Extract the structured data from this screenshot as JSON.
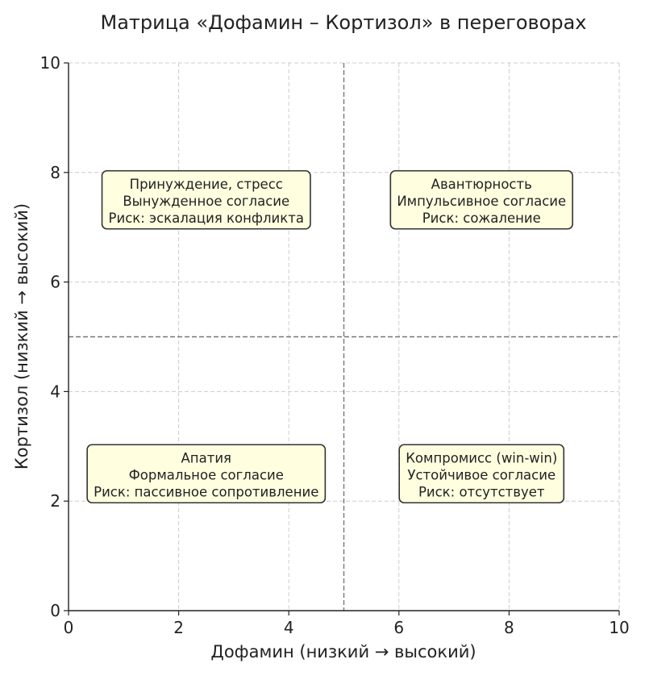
{
  "chart_data": {
    "type": "scatter",
    "title": "Матрица «Дофамин – Кортизол» в переговорах",
    "xlabel": "Дофамин (низкий → высокий)",
    "ylabel": "Кортизол (низкий → высокий)",
    "xlim": [
      0,
      10
    ],
    "ylim": [
      0,
      10
    ],
    "xticks": [
      "0",
      "2",
      "4",
      "6",
      "8",
      "10"
    ],
    "yticks": [
      "0",
      "2",
      "4",
      "6",
      "8",
      "10"
    ],
    "xtick_values": [
      0,
      2,
      4,
      6,
      8,
      10
    ],
    "ytick_values": [
      0,
      2,
      4,
      6,
      8,
      10
    ],
    "grid": true,
    "dividers": {
      "x": 5,
      "y": 5
    },
    "annotations": [
      {
        "x": 2.5,
        "y": 7.5,
        "lines": [
          "Принуждение, стресс",
          "Вынужденное согласие",
          "Риск: эскалация конфликта"
        ]
      },
      {
        "x": 7.5,
        "y": 7.5,
        "lines": [
          "Авантюрность",
          "Импульсивное согласие",
          "Риск: сожаление"
        ]
      },
      {
        "x": 2.5,
        "y": 2.5,
        "lines": [
          "Апатия",
          "Формальное согласие",
          "Риск: пассивное сопротивление"
        ]
      },
      {
        "x": 7.5,
        "y": 2.5,
        "lines": [
          "Компромисс (win-win)",
          "Устойчивое согласие",
          "Риск: отсутствует"
        ]
      }
    ],
    "colors": {
      "box_fill": "#ffffe0",
      "box_edge": "#333333",
      "grid": "#cccccc",
      "divider": "#777777"
    }
  }
}
